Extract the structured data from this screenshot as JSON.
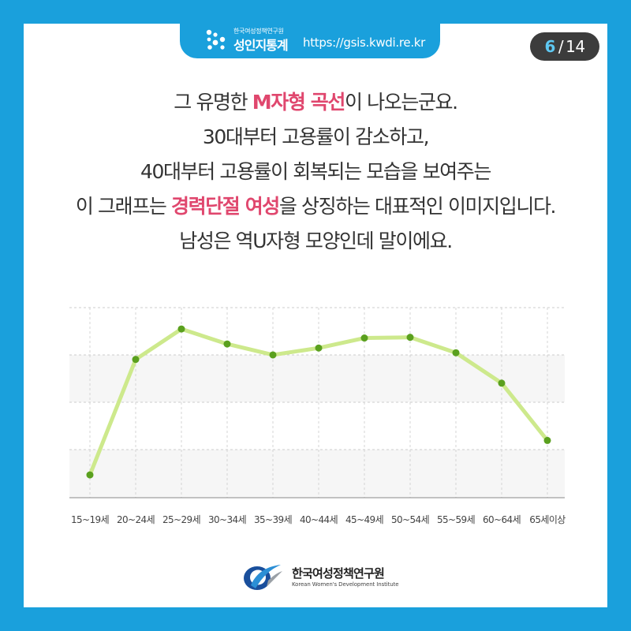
{
  "header": {
    "org_small": "한국여성정책연구원",
    "brand": "성인지통계",
    "url": "https://gsis.kwdi.re.kr"
  },
  "page": {
    "current": "6",
    "separator": "/",
    "total": "14"
  },
  "narrative": {
    "line1_pre": "그 유명한 ",
    "line1_highlight": "M자형 곡선",
    "line1_post": "이 나오는군요.",
    "line2": "30대부터 고용률이 감소하고,",
    "line3": "40대부터 고용률이 회복되는 모습을 보여주는",
    "line4_pre": "이 그래프는 ",
    "line4_highlight": "경력단절 여성",
    "line4_post": "을 상징하는 대표적인 이미지입니다.",
    "line5": "남성은 역U자형 모양인데 말이에요."
  },
  "colors": {
    "background": "#1aa0dc",
    "highlight": "#e0476e",
    "line": "#cde98c",
    "point": "#5aa01e",
    "page_current": "#5ec8f2"
  },
  "chart_data": {
    "type": "line",
    "categories": [
      "15~19세",
      "20~24세",
      "25~29세",
      "30~34세",
      "35~39세",
      "40~44세",
      "45~49세",
      "50~54세",
      "55~59세",
      "60~64세",
      "65세이상"
    ],
    "values": [
      9.6,
      58.2,
      71.0,
      64.7,
      60.1,
      63.0,
      67.2,
      67.5,
      61.0,
      48.2,
      24.1
    ],
    "ylim": [
      0,
      80
    ],
    "grid": true,
    "legend": "none"
  },
  "footer": {
    "org_name": "한국여성정책연구원",
    "org_english": "Korean Women's Development Institute"
  }
}
